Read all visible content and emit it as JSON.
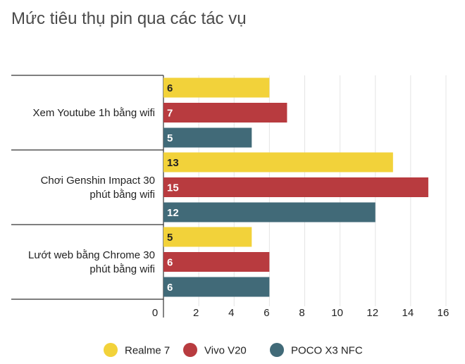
{
  "chart_data": {
    "type": "bar",
    "orientation": "horizontal",
    "title": "Mức tiêu thụ pin qua các tác vụ",
    "categories": [
      [
        "Xem Youtube 1h bằng wifi"
      ],
      [
        "Chơi Genshin Impact 30",
        "phút bằng wifi"
      ],
      [
        "Lướt web bằng Chrome 30",
        "phút bằng wifi"
      ]
    ],
    "series": [
      {
        "name": "Realme 7",
        "color": "#f2d23a",
        "label_color": "#222222",
        "values": [
          6,
          13,
          5
        ]
      },
      {
        "name": "Vivo V20",
        "color": "#b83b3f",
        "label_color": "#ffffff",
        "values": [
          7,
          15,
          6
        ]
      },
      {
        "name": "POCO X3 NFC",
        "color": "#416a78",
        "label_color": "#ffffff",
        "values": [
          5,
          12,
          6
        ]
      }
    ],
    "xlim": [
      0,
      16
    ],
    "xticks": [
      0,
      2,
      4,
      6,
      8,
      10,
      12,
      14,
      16
    ],
    "grid": "vertical",
    "legend": "bottom"
  }
}
